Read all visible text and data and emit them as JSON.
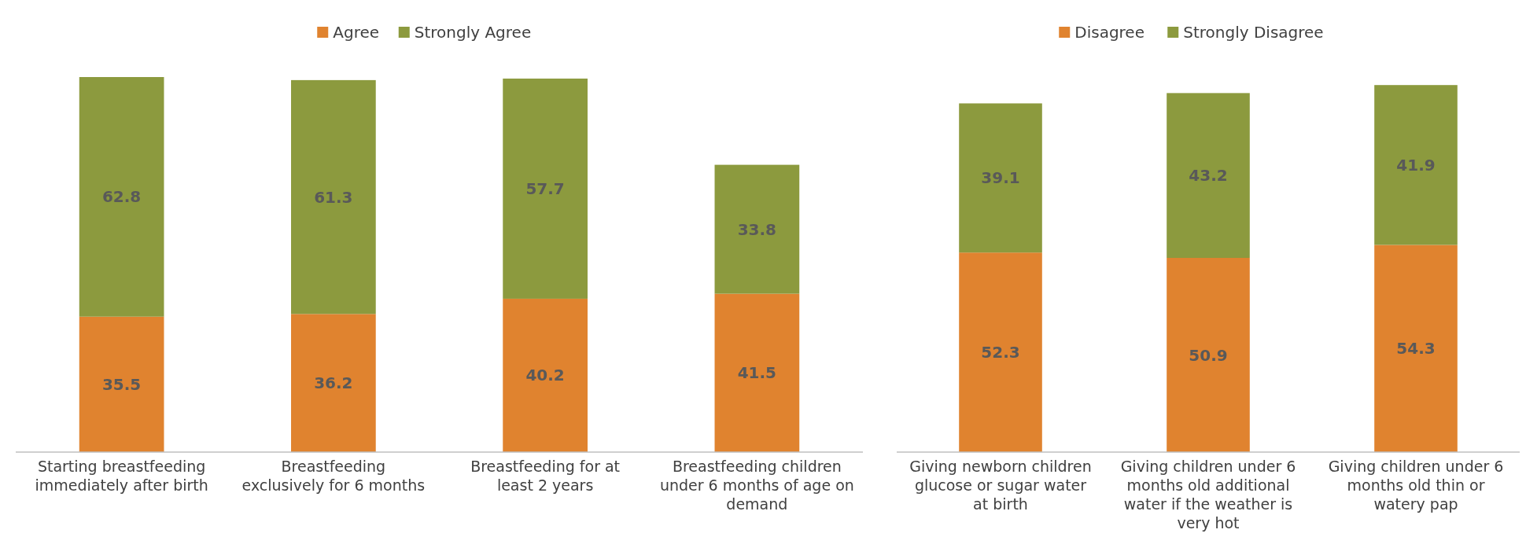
{
  "chart_data": [
    {
      "type": "bar",
      "stacked": true,
      "data_labels": true,
      "legend": "top",
      "categories": [
        "Starting breastfeeding immediately after birth",
        "Breastfeeding exclusively for 6 months",
        "Breastfeeding for at least 2 years",
        "Breastfeeding children under 6 months of age on demand"
      ],
      "series": [
        {
          "name": "Agree",
          "color": "#e0832f",
          "values": [
            35.5,
            36.2,
            40.2,
            41.5
          ]
        },
        {
          "name": "Strongly Agree",
          "color": "#8c9a3e",
          "values": [
            62.8,
            61.3,
            57.7,
            33.8
          ]
        }
      ]
    },
    {
      "type": "bar",
      "stacked": true,
      "data_labels": true,
      "legend": "top",
      "categories": [
        "Giving newborn children glucose or sugar water at birth",
        "Giving children under 6 months old additional water if the weather is very hot",
        "Giving children under 6 months old thin or watery pap"
      ],
      "series": [
        {
          "name": "Disagree",
          "color": "#e0832f",
          "values": [
            52.3,
            50.9,
            54.3
          ]
        },
        {
          "name": "Strongly Disagree",
          "color": "#8c9a3e",
          "values": [
            39.1,
            43.2,
            41.9
          ]
        }
      ]
    }
  ]
}
